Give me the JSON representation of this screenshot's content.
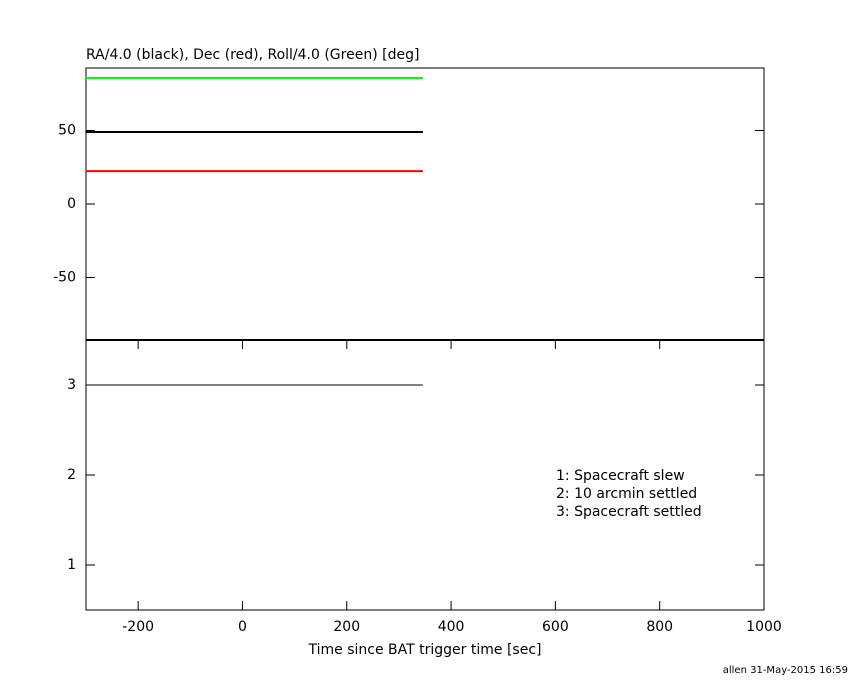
{
  "chart_data": [
    {
      "type": "line",
      "title": "RA/4.0 (black), Dec (red), Roll/4.0 (Green) [deg]",
      "x": [
        -300,
        346
      ],
      "series": [
        {
          "color": "#000000",
          "values": [
            49,
            49
          ]
        },
        {
          "color": "#ff0000",
          "values": [
            22.4,
            22.4
          ]
        },
        {
          "color": "#00ff00",
          "values": [
            85.7,
            85.7
          ]
        }
      ],
      "xlim": [
        -300,
        1000
      ],
      "ylim": [
        -92.5,
        92.5
      ],
      "yticks": [
        -50,
        0,
        50
      ]
    },
    {
      "type": "line",
      "xlabel": "Time since BAT trigger time [sec]",
      "x": [
        -300,
        346
      ],
      "values": [
        3,
        3
      ],
      "color": "#000000",
      "xlim": [
        -300,
        1000
      ],
      "ylim": [
        0.5,
        3.5
      ],
      "yticks": [
        1,
        2,
        3
      ],
      "xticks": [
        -200,
        0,
        200,
        400,
        600,
        800,
        1000
      ],
      "annotations": [
        "1: Spacecraft slew",
        "2: 10 arcmin settled",
        "3: Spacecraft settled"
      ]
    }
  ],
  "footer": "allen 31-May-2015 16:59"
}
